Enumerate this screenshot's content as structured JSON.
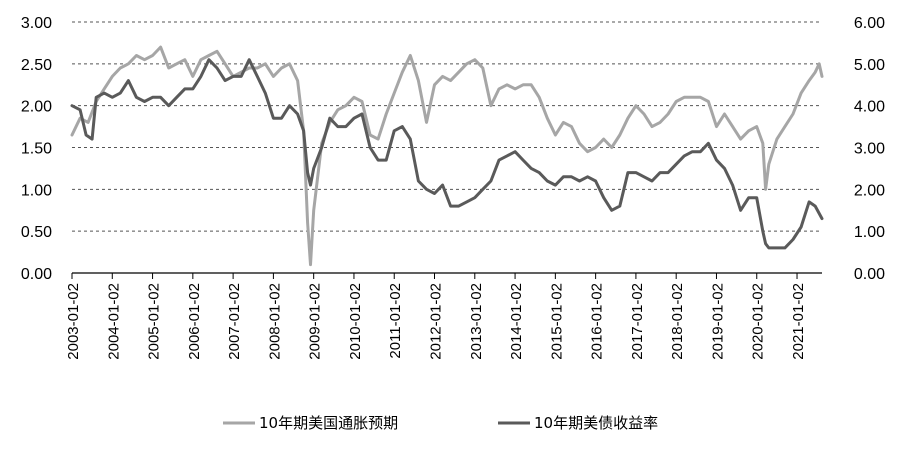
{
  "chart_data": {
    "type": "line",
    "title": "",
    "xlabel": "",
    "ylabel": "",
    "y_left": {
      "ticks": [
        "0.00",
        "0.50",
        "1.00",
        "1.50",
        "2.00",
        "2.50",
        "3.00"
      ],
      "range": [
        0,
        3
      ]
    },
    "y_right": {
      "ticks": [
        "0.00",
        "1.00",
        "2.00",
        "3.00",
        "4.00",
        "5.00",
        "6.00"
      ],
      "range": [
        0,
        6
      ]
    },
    "x_range": [
      2003.0,
      2021.62
    ],
    "x_ticks": [
      "2003-01-02",
      "2004-01-02",
      "2005-01-02",
      "2006-01-02",
      "2007-01-02",
      "2008-01-02",
      "2009-01-02",
      "2010-01-02",
      "2011-01-02",
      "2012-01-02",
      "2013-01-02",
      "2014-01-02",
      "2015-01-02",
      "2016-01-02",
      "2017-01-02",
      "2018-01-02",
      "2019-01-02",
      "2020-01-02",
      "2021-01-02"
    ],
    "grid": "horizontal dashed",
    "legend_position": "bottom",
    "series": [
      {
        "name": "10年期美国通胀预期",
        "axis": "left",
        "color": "#a6a6a6",
        "x": [
          2003.0,
          2003.2,
          2003.4,
          2003.6,
          2003.8,
          2004.0,
          2004.2,
          2004.4,
          2004.6,
          2004.8,
          2005.0,
          2005.2,
          2005.4,
          2005.6,
          2005.8,
          2006.0,
          2006.2,
          2006.4,
          2006.6,
          2006.8,
          2007.0,
          2007.2,
          2007.4,
          2007.6,
          2007.8,
          2008.0,
          2008.2,
          2008.4,
          2008.6,
          2008.75,
          2008.85,
          2008.92,
          2009.0,
          2009.2,
          2009.4,
          2009.6,
          2009.8,
          2010.0,
          2010.2,
          2010.4,
          2010.6,
          2010.8,
          2011.0,
          2011.2,
          2011.4,
          2011.6,
          2011.8,
          2012.0,
          2012.2,
          2012.4,
          2012.6,
          2012.8,
          2013.0,
          2013.2,
          2013.4,
          2013.6,
          2013.8,
          2014.0,
          2014.2,
          2014.4,
          2014.6,
          2014.8,
          2015.0,
          2015.2,
          2015.4,
          2015.6,
          2015.8,
          2016.0,
          2016.2,
          2016.4,
          2016.6,
          2016.8,
          2017.0,
          2017.2,
          2017.4,
          2017.6,
          2017.8,
          2018.0,
          2018.2,
          2018.4,
          2018.6,
          2018.8,
          2019.0,
          2019.2,
          2019.4,
          2019.6,
          2019.8,
          2020.0,
          2020.15,
          2020.22,
          2020.3,
          2020.5,
          2020.7,
          2020.9,
          2021.1,
          2021.3,
          2021.45,
          2021.55,
          2021.62
        ],
        "values": [
          1.65,
          1.85,
          1.8,
          2.05,
          2.2,
          2.35,
          2.45,
          2.5,
          2.6,
          2.55,
          2.6,
          2.7,
          2.45,
          2.5,
          2.55,
          2.35,
          2.55,
          2.6,
          2.65,
          2.5,
          2.35,
          2.4,
          2.45,
          2.45,
          2.5,
          2.35,
          2.45,
          2.5,
          2.3,
          1.7,
          0.6,
          0.1,
          0.75,
          1.55,
          1.8,
          1.95,
          2.0,
          2.1,
          2.05,
          1.65,
          1.6,
          1.9,
          2.15,
          2.4,
          2.6,
          2.3,
          1.8,
          2.25,
          2.35,
          2.3,
          2.4,
          2.5,
          2.55,
          2.45,
          2.0,
          2.2,
          2.25,
          2.2,
          2.25,
          2.25,
          2.1,
          1.85,
          1.65,
          1.8,
          1.75,
          1.55,
          1.45,
          1.5,
          1.6,
          1.5,
          1.65,
          1.85,
          2.0,
          1.9,
          1.75,
          1.8,
          1.9,
          2.05,
          2.1,
          2.1,
          2.1,
          2.05,
          1.75,
          1.9,
          1.75,
          1.6,
          1.7,
          1.75,
          1.55,
          1.0,
          1.3,
          1.6,
          1.75,
          1.9,
          2.15,
          2.3,
          2.4,
          2.5,
          2.35
        ]
      },
      {
        "name": "10年期美债收益率",
        "axis": "right",
        "color": "#5a5a5a",
        "x": [
          2003.0,
          2003.2,
          2003.35,
          2003.5,
          2003.6,
          2003.8,
          2004.0,
          2004.2,
          2004.4,
          2004.6,
          2004.8,
          2005.0,
          2005.2,
          2005.4,
          2005.6,
          2005.8,
          2006.0,
          2006.2,
          2006.4,
          2006.6,
          2006.8,
          2007.0,
          2007.2,
          2007.4,
          2007.6,
          2007.8,
          2008.0,
          2008.2,
          2008.4,
          2008.6,
          2008.75,
          2008.85,
          2008.92,
          2009.0,
          2009.2,
          2009.4,
          2009.6,
          2009.8,
          2010.0,
          2010.2,
          2010.4,
          2010.6,
          2010.8,
          2011.0,
          2011.2,
          2011.4,
          2011.6,
          2011.8,
          2012.0,
          2012.2,
          2012.4,
          2012.6,
          2012.8,
          2013.0,
          2013.2,
          2013.4,
          2013.6,
          2013.8,
          2014.0,
          2014.2,
          2014.4,
          2014.6,
          2014.8,
          2015.0,
          2015.2,
          2015.4,
          2015.6,
          2015.8,
          2016.0,
          2016.2,
          2016.4,
          2016.6,
          2016.8,
          2017.0,
          2017.2,
          2017.4,
          2017.6,
          2017.8,
          2018.0,
          2018.2,
          2018.4,
          2018.6,
          2018.8,
          2019.0,
          2019.2,
          2019.4,
          2019.6,
          2019.8,
          2020.0,
          2020.15,
          2020.22,
          2020.3,
          2020.5,
          2020.7,
          2020.9,
          2021.1,
          2021.2,
          2021.3,
          2021.45,
          2021.62
        ],
        "values": [
          4.0,
          3.9,
          3.3,
          3.2,
          4.2,
          4.3,
          4.2,
          4.3,
          4.6,
          4.2,
          4.1,
          4.2,
          4.2,
          4.0,
          4.2,
          4.4,
          4.4,
          4.7,
          5.1,
          4.9,
          4.6,
          4.7,
          4.7,
          5.1,
          4.7,
          4.3,
          3.7,
          3.7,
          4.0,
          3.8,
          3.4,
          2.4,
          2.1,
          2.5,
          3.0,
          3.7,
          3.5,
          3.5,
          3.7,
          3.8,
          3.0,
          2.7,
          2.7,
          3.4,
          3.5,
          3.2,
          2.2,
          2.0,
          1.9,
          2.1,
          1.6,
          1.6,
          1.7,
          1.8,
          2.0,
          2.2,
          2.7,
          2.8,
          2.9,
          2.7,
          2.5,
          2.4,
          2.2,
          2.1,
          2.3,
          2.3,
          2.2,
          2.3,
          2.2,
          1.8,
          1.5,
          1.6,
          2.4,
          2.4,
          2.3,
          2.2,
          2.4,
          2.4,
          2.6,
          2.8,
          2.9,
          2.9,
          3.1,
          2.7,
          2.5,
          2.1,
          1.5,
          1.8,
          1.8,
          1.0,
          0.7,
          0.6,
          0.6,
          0.6,
          0.8,
          1.1,
          1.4,
          1.7,
          1.6,
          1.3
        ]
      }
    ]
  }
}
